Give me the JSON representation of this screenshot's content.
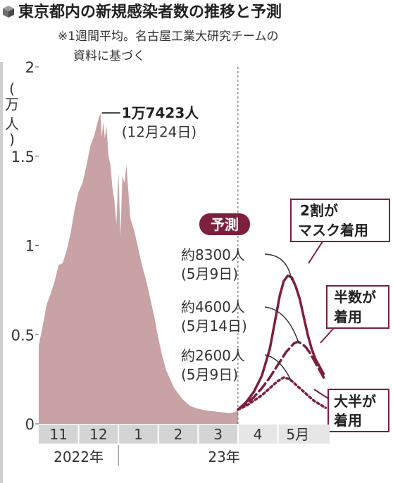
{
  "header": {
    "title": "東京都内の新規感染者数の推移と予測",
    "note_line1": "※1週間平均。名古屋工業大研究チームの",
    "note_line2": "資料に基づく"
  },
  "colors": {
    "bars": "#c9a2a6",
    "forecast": "#7e1f3c",
    "badge": "#7e1f3c",
    "month_band": "#d4d4d4"
  },
  "chart_data": {
    "type": "area",
    "title": "東京都内の新規感染者数の推移と予測",
    "ylabel": "(万人)",
    "ylim": [
      0,
      2
    ],
    "yticks": [
      "0",
      "0.5",
      "1",
      "1.5",
      "2"
    ],
    "ytick_values": [
      0,
      0.5,
      1,
      1.5,
      2
    ],
    "xrange": [
      -2,
      5.3
    ],
    "months": [
      {
        "label": "11",
        "start": -2,
        "end": -1
      },
      {
        "label": "12",
        "start": -1,
        "end": 0
      },
      {
        "label": "1",
        "start": 0,
        "end": 1
      },
      {
        "label": "2",
        "start": 1,
        "end": 2
      },
      {
        "label": "3",
        "start": 2,
        "end": 3
      },
      {
        "label": "4",
        "start": 3,
        "end": 4
      },
      {
        "label": "5月",
        "start": 4,
        "end": 5
      }
    ],
    "years": [
      {
        "label": "2022年",
        "start": -2,
        "end": 0
      },
      {
        "label": "23年",
        "start": 0,
        "end": 5.3
      }
    ],
    "forecast_start": 3,
    "observed": {
      "x": [
        -2.0,
        -1.9,
        -1.8,
        -1.7,
        -1.6,
        -1.5,
        -1.4,
        -1.3,
        -1.2,
        -1.1,
        -1.0,
        -0.9,
        -0.8,
        -0.7,
        -0.6,
        -0.5,
        -0.45,
        -0.42,
        -0.38,
        -0.34,
        -0.3,
        -0.25,
        -0.2,
        -0.15,
        -0.1,
        -0.05,
        0.0,
        0.05,
        0.1,
        0.15,
        0.2,
        0.3,
        0.4,
        0.5,
        0.6,
        0.7,
        0.8,
        0.9,
        1.0,
        1.1,
        1.2,
        1.4,
        1.6,
        1.8,
        2.0,
        2.2,
        2.4,
        2.6,
        2.8,
        2.9,
        3.0
      ],
      "values": [
        0.44,
        0.55,
        0.67,
        0.73,
        0.8,
        0.89,
        0.9,
        0.97,
        1.07,
        1.2,
        1.3,
        1.35,
        1.45,
        1.56,
        1.62,
        1.71,
        1.74,
        1.61,
        1.69,
        1.6,
        1.67,
        1.5,
        1.45,
        1.32,
        1.25,
        1.12,
        1.41,
        1.05,
        1.39,
        1.35,
        1.45,
        1.15,
        1.08,
        0.98,
        0.88,
        0.8,
        0.7,
        0.6,
        0.48,
        0.38,
        0.3,
        0.2,
        0.14,
        0.1,
        0.085,
        0.075,
        0.07,
        0.065,
        0.06,
        0.065,
        0.075
      ]
    },
    "peak": {
      "x": -0.45,
      "value": 1.7423,
      "label_bold": "1万7423人",
      "label_date": "(12月24日)"
    },
    "forecast_badge": "予測",
    "series": [
      {
        "name": "2割がマスク着用",
        "label_lines": [
          "2割が",
          "マスク着用"
        ],
        "peak_label": "約8300人",
        "peak_date": "(5月9日)",
        "style": "solid",
        "x": [
          3.0,
          3.2,
          3.4,
          3.6,
          3.8,
          3.95,
          4.05,
          4.15,
          4.25,
          4.35,
          4.45,
          4.55,
          4.65,
          4.75,
          4.85,
          4.95,
          5.05,
          5.15
        ],
        "values": [
          0.08,
          0.12,
          0.18,
          0.27,
          0.42,
          0.6,
          0.72,
          0.8,
          0.83,
          0.82,
          0.77,
          0.7,
          0.6,
          0.5,
          0.42,
          0.36,
          0.32,
          0.28
        ]
      },
      {
        "name": "半数が着用",
        "label_lines": [
          "半数が",
          "着用"
        ],
        "peak_label": "約4600人",
        "peak_date": "(5月14日)",
        "style": "dashed",
        "x": [
          3.0,
          3.2,
          3.4,
          3.6,
          3.8,
          4.0,
          4.2,
          4.4,
          4.5,
          4.6,
          4.7,
          4.8,
          4.9,
          5.0,
          5.1,
          5.2
        ],
        "values": [
          0.08,
          0.11,
          0.15,
          0.2,
          0.26,
          0.33,
          0.4,
          0.45,
          0.46,
          0.45,
          0.43,
          0.4,
          0.36,
          0.32,
          0.28,
          0.24
        ]
      },
      {
        "name": "大半が着用",
        "label_lines": [
          "大半が",
          "着用"
        ],
        "peak_label": "約2600人",
        "peak_date": "(5月9日)",
        "style": "dotted",
        "x": [
          3.0,
          3.2,
          3.4,
          3.6,
          3.8,
          4.0,
          4.15,
          4.3,
          4.45,
          4.6,
          4.75,
          4.9,
          5.05,
          5.2
        ],
        "values": [
          0.08,
          0.1,
          0.13,
          0.16,
          0.2,
          0.24,
          0.26,
          0.25,
          0.22,
          0.19,
          0.16,
          0.13,
          0.11,
          0.09
        ]
      }
    ]
  }
}
